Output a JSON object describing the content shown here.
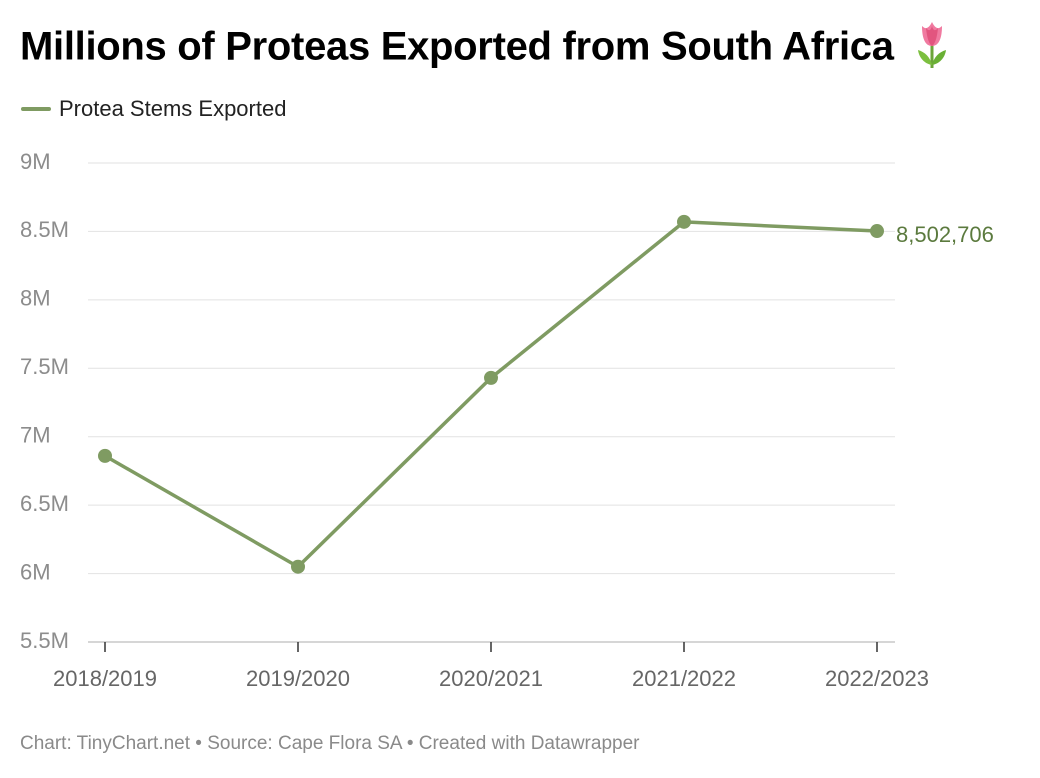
{
  "title": "Millions of Proteas Exported from South Africa",
  "title_icon": "tulip-icon",
  "footer": "Chart: TinyChart.net • Source: Cape Flora SA • Created with Datawrapper",
  "colors": {
    "series": "#7f9b62",
    "label": "#5b7a3e",
    "grid": "#e2e2e2",
    "axis_text": "#8c8c8c",
    "tick": "#333333"
  },
  "chart_data": {
    "type": "line",
    "categories": [
      "2018/2019",
      "2019/2020",
      "2020/2021",
      "2021/2022",
      "2022/2023"
    ],
    "series": [
      {
        "name": "Protea Stems Exported",
        "values": [
          6860000,
          6050000,
          7430000,
          8570000,
          8502706
        ]
      }
    ],
    "end_label": "8,502,706",
    "ylim": [
      5500000,
      9000000
    ],
    "yticks": [
      5500000,
      6000000,
      6500000,
      7000000,
      7500000,
      8000000,
      8500000,
      9000000
    ],
    "ytick_labels": [
      "5.5M",
      "6M",
      "6.5M",
      "7M",
      "7.5M",
      "8M",
      "8.5M",
      "9M"
    ],
    "grid": true,
    "legend_position": "top-left"
  }
}
